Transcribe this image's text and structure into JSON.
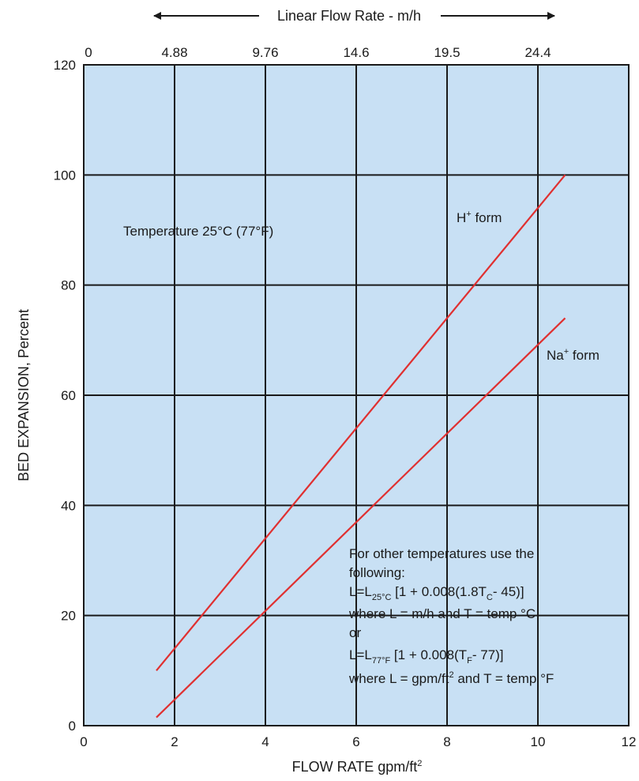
{
  "chart_data": {
    "type": "line",
    "xlabel": "FLOW RATE gpm/ft",
    "xlabel_sup": "2",
    "ylabel": "BED EXPANSION, Percent",
    "top_axis_label": "Linear Flow Rate - m/h",
    "xlim": [
      0,
      12
    ],
    "ylim": [
      0,
      120
    ],
    "x_ticks": [
      "0",
      "2",
      "4",
      "6",
      "8",
      "10",
      "12"
    ],
    "y_ticks": [
      "0",
      "20",
      "40",
      "60",
      "80",
      "100",
      "120"
    ],
    "top_ticks": [
      "0",
      "4.88",
      "9.76",
      "14.6",
      "19.5",
      "24.4"
    ],
    "grid": true,
    "series": [
      {
        "name": "H",
        "name_sup": "+",
        "name_suffix": " form",
        "color": "#e03030",
        "x": [
          1.6,
          10.6
        ],
        "y": [
          10,
          100
        ]
      },
      {
        "name": "Na",
        "name_sup": "+",
        "name_suffix": " form",
        "color": "#e03030",
        "x": [
          1.6,
          10.6
        ],
        "y": [
          1.5,
          74
        ]
      }
    ],
    "annotations": {
      "temperature": "Temperature 25°C (77°F)",
      "note_line1": "For other temperatures use the",
      "note_line2": "following:",
      "formula1_a": "L=L",
      "formula1_sub": "25°C",
      "formula1_b": " [1 + 0.008(1.8T",
      "formula1_sub2": "C",
      "formula1_c": "- 45)]",
      "note_line4": "where L = m/h and T = temp °C",
      "note_line5": "or",
      "formula2_a": "L=L",
      "formula2_sub": "77°F",
      "formula2_b": " [1 + 0.008(T",
      "formula2_sub2": "F",
      "formula2_c": "- 77)]",
      "note_line7_a": "where L = gpm/ft",
      "note_line7_sup": "2",
      "note_line7_b": " and T = temp °F"
    },
    "plot_background": "#c8e0f4"
  }
}
